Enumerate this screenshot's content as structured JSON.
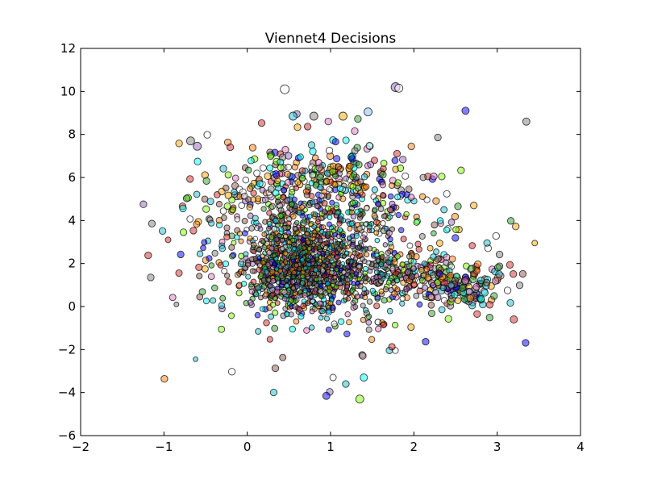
{
  "chart_data": {
    "type": "scatter",
    "title": "Viennet4 Decisions",
    "xlabel": "",
    "ylabel": "",
    "xlim": [
      -2,
      4
    ],
    "ylim": [
      -6,
      12
    ],
    "x_ticks": [
      "−2",
      "−1",
      "0",
      "1",
      "2",
      "3",
      "4"
    ],
    "y_ticks": [
      "−6",
      "−4",
      "−2",
      "0",
      "2",
      "4",
      "6",
      "8",
      "10",
      "12"
    ],
    "grid": false,
    "legend": "none",
    "marker_alpha": 0.5,
    "colors": [
      "#7f7f7f",
      "#ff7f0e",
      "#2ca02c",
      "#d62728",
      "#9467bd",
      "#8c564b",
      "#e377c2",
      "#17becf",
      "#00ffff",
      "#7fff00",
      "#0000ff",
      "#ffa500",
      "#ffffff"
    ],
    "cloud": {
      "description": "dense random cloud of several thousand small translucent points",
      "point_count": 2600,
      "core_center": [
        0.7,
        1.8
      ]
    },
    "notable_points": [
      {
        "x": 0.45,
        "y": 10.1,
        "size": 9,
        "color": "#ffffff"
      },
      {
        "x": 1.78,
        "y": 10.2,
        "size": 9,
        "color": "#9467bd"
      },
      {
        "x": 1.82,
        "y": 10.15,
        "size": 8,
        "color": "#ffffff"
      },
      {
        "x": 1.45,
        "y": 9.05,
        "size": 8,
        "color": "#7fbfff"
      },
      {
        "x": 2.62,
        "y": 9.1,
        "size": 7,
        "color": "#0000ff"
      },
      {
        "x": 3.35,
        "y": 8.6,
        "size": 7,
        "color": "#7f7f7f"
      },
      {
        "x": 0.55,
        "y": 8.85,
        "size": 8,
        "color": "#17becf"
      },
      {
        "x": 0.8,
        "y": 8.85,
        "size": 8,
        "color": "#7f7f7f"
      },
      {
        "x": 1.15,
        "y": 8.85,
        "size": 8,
        "color": "#ffa500"
      },
      {
        "x": -0.68,
        "y": 7.7,
        "size": 8,
        "color": "#7f7f7f"
      },
      {
        "x": -0.6,
        "y": 7.45,
        "size": 8,
        "color": "#9467bd"
      },
      {
        "x": 0.95,
        "y": -4.15,
        "size": 7,
        "color": "#0000ff"
      },
      {
        "x": 1.35,
        "y": -4.3,
        "size": 8,
        "color": "#7fff00"
      },
      {
        "x": 1.4,
        "y": -3.3,
        "size": 7,
        "color": "#00ffff"
      },
      {
        "x": 1.03,
        "y": -3.3,
        "size": 6,
        "color": "#ffffff"
      },
      {
        "x": 3.2,
        "y": -0.6,
        "size": 7,
        "color": "#d62728"
      },
      {
        "x": 3.45,
        "y": 2.95,
        "size": 5,
        "color": "#ffa500"
      },
      {
        "x": -0.95,
        "y": 3.1,
        "size": 5,
        "color": "#d62728"
      },
      {
        "x": -0.62,
        "y": -2.45,
        "size": 4,
        "color": "#17becf"
      },
      {
        "x": -0.85,
        "y": 0.1,
        "size": 4,
        "color": "#7f7f7f"
      }
    ]
  }
}
